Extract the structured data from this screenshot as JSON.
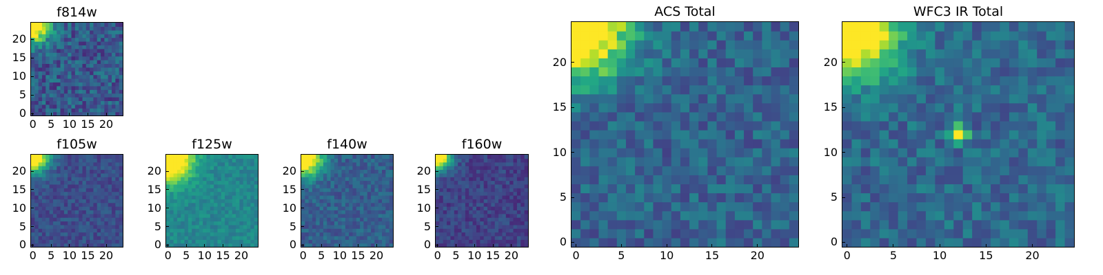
{
  "chart_data": [
    {
      "id": "f814w",
      "type": "heatmap",
      "title": "f814w",
      "colormap": "viridis",
      "grid_size": [
        25,
        25
      ],
      "origin": "lower",
      "xlim": [
        -0.5,
        24.5
      ],
      "ylim": [
        -0.5,
        24.5
      ],
      "xticks": [
        0,
        5,
        10,
        15,
        20
      ],
      "yticks": [
        0,
        5,
        10,
        15,
        20
      ],
      "hotspots": [
        {
          "x": 0,
          "y": 24,
          "value": 1.0,
          "spread": 3.2
        }
      ],
      "noise_level": 0.32,
      "base_value": 0.28,
      "seed": 11
    },
    {
      "id": "f105w",
      "type": "heatmap",
      "title": "f105w",
      "colormap": "viridis",
      "grid_size": [
        25,
        25
      ],
      "origin": "lower",
      "xlim": [
        -0.5,
        24.5
      ],
      "ylim": [
        -0.5,
        24.5
      ],
      "xticks": [
        0,
        5,
        10,
        15,
        20
      ],
      "yticks": [
        0,
        5,
        10,
        15,
        20
      ],
      "hotspots": [
        {
          "x": 0,
          "y": 24,
          "value": 1.0,
          "spread": 3.0
        }
      ],
      "noise_level": 0.18,
      "base_value": 0.24,
      "seed": 23
    },
    {
      "id": "f125w",
      "type": "heatmap",
      "title": "f125w",
      "colormap": "viridis",
      "grid_size": [
        25,
        25
      ],
      "origin": "lower",
      "xlim": [
        -0.5,
        24.5
      ],
      "ylim": [
        -0.5,
        24.5
      ],
      "xticks": [
        0,
        5,
        10,
        15,
        20
      ],
      "yticks": [
        0,
        5,
        10,
        15,
        20
      ],
      "hotspots": [
        {
          "x": 0,
          "y": 24,
          "value": 1.0,
          "spread": 4.5
        }
      ],
      "noise_level": 0.16,
      "base_value": 0.46,
      "seed": 37
    },
    {
      "id": "f140w",
      "type": "heatmap",
      "title": "f140w",
      "colormap": "viridis",
      "grid_size": [
        25,
        25
      ],
      "origin": "lower",
      "xlim": [
        -0.5,
        24.5
      ],
      "ylim": [
        -0.5,
        24.5
      ],
      "xticks": [
        0,
        5,
        10,
        15,
        20
      ],
      "yticks": [
        0,
        5,
        10,
        15,
        20
      ],
      "hotspots": [
        {
          "x": 0,
          "y": 24,
          "value": 1.0,
          "spread": 3.6
        }
      ],
      "noise_level": 0.2,
      "base_value": 0.3,
      "seed": 41
    },
    {
      "id": "f160w",
      "type": "heatmap",
      "title": "f160w",
      "colormap": "viridis",
      "grid_size": [
        25,
        25
      ],
      "origin": "lower",
      "xlim": [
        -0.5,
        24.5
      ],
      "ylim": [
        -0.5,
        24.5
      ],
      "xticks": [
        0,
        5,
        10,
        15,
        20
      ],
      "yticks": [
        0,
        5,
        10,
        15,
        20
      ],
      "hotspots": [
        {
          "x": 0,
          "y": 24,
          "value": 1.0,
          "spread": 2.6
        }
      ],
      "noise_level": 0.18,
      "base_value": 0.2,
      "seed": 53
    },
    {
      "id": "acs_total",
      "type": "heatmap",
      "title": "ACS Total",
      "colormap": "viridis",
      "grid_size": [
        25,
        25
      ],
      "origin": "lower",
      "xlim": [
        -0.5,
        24.5
      ],
      "ylim": [
        -0.5,
        24.5
      ],
      "xticks": [
        0,
        5,
        10,
        15,
        20
      ],
      "yticks": [
        0,
        5,
        10,
        15,
        20
      ],
      "hotspots": [
        {
          "x": 0,
          "y": 24,
          "value": 1.0,
          "spread": 4.0
        }
      ],
      "noise_level": 0.26,
      "base_value": 0.32,
      "seed": 67
    },
    {
      "id": "wfc3_ir_total",
      "type": "heatmap",
      "title": "WFC3 IR Total",
      "colormap": "viridis",
      "grid_size": [
        25,
        25
      ],
      "origin": "lower",
      "xlim": [
        -0.5,
        24.5
      ],
      "ylim": [
        -0.5,
        24.5
      ],
      "xticks": [
        0,
        5,
        10,
        15,
        20
      ],
      "yticks": [
        0,
        5,
        10,
        15,
        20
      ],
      "hotspots": [
        {
          "x": 0,
          "y": 24,
          "value": 1.0,
          "spread": 3.8
        },
        {
          "x": 12,
          "y": 12,
          "value": 0.95,
          "spread": 0.6
        }
      ],
      "noise_level": 0.26,
      "base_value": 0.34,
      "seed": 79
    }
  ]
}
